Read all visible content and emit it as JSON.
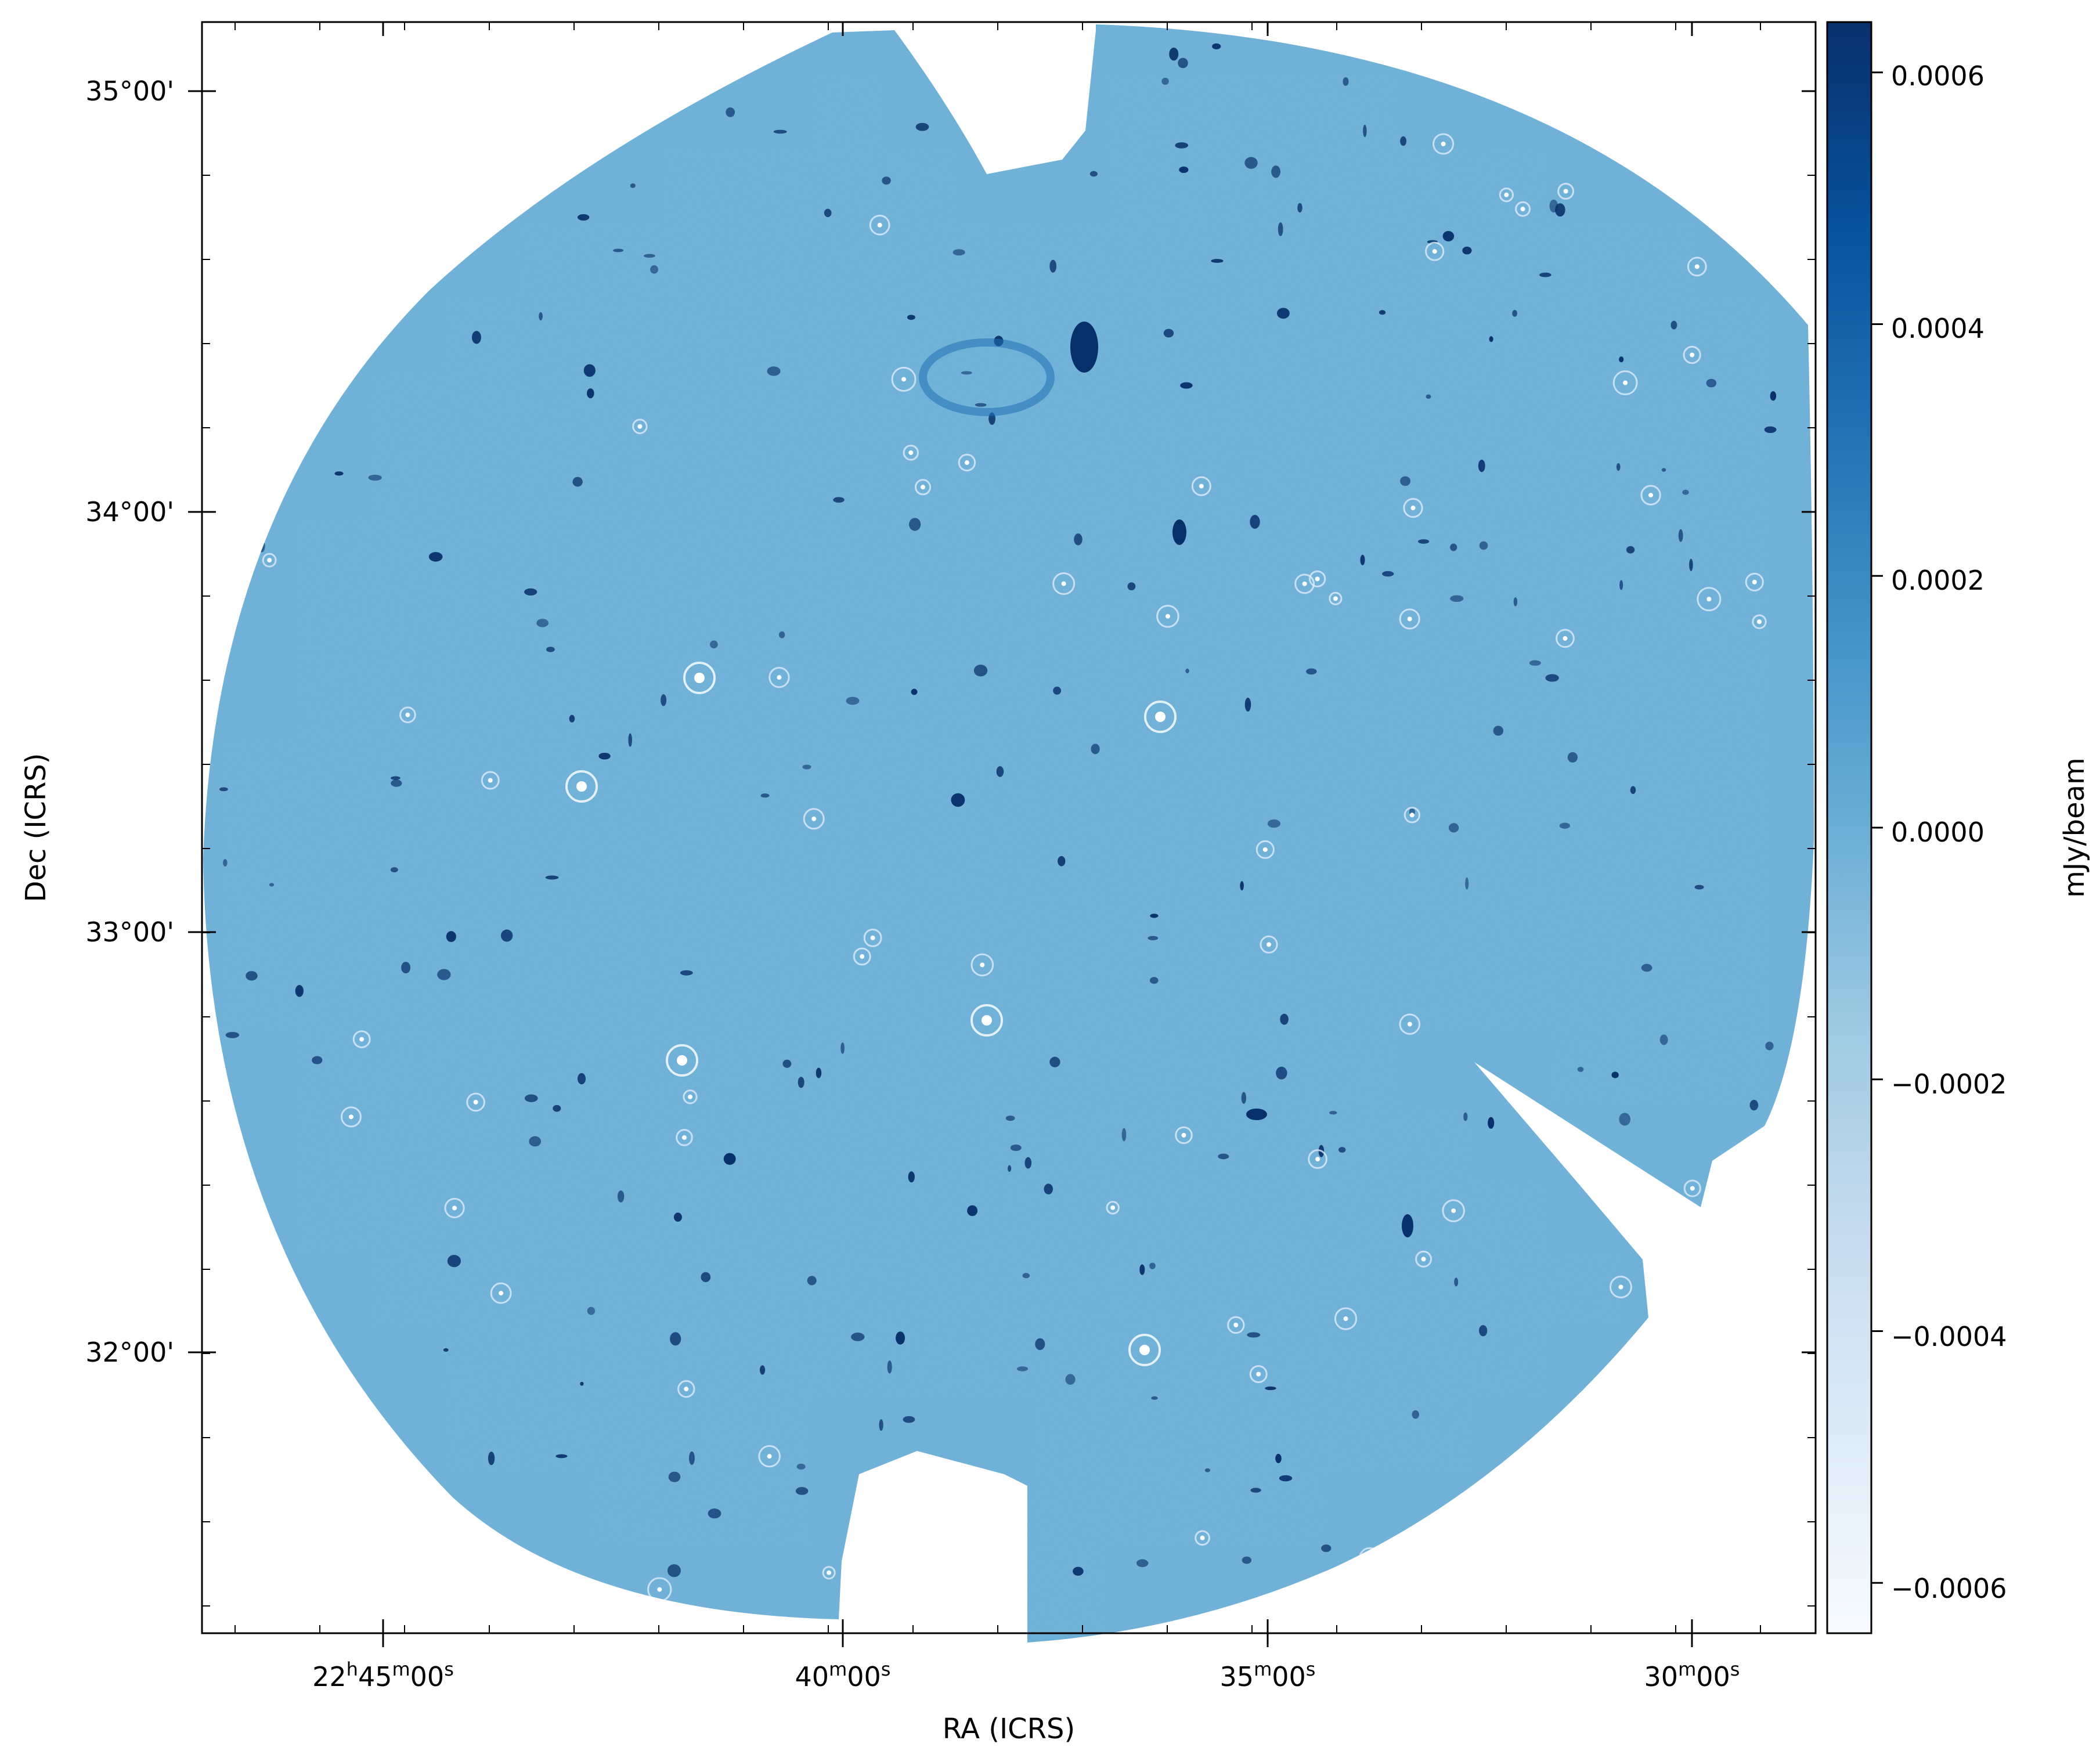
{
  "chart_data": {
    "type": "heatmap",
    "title": "",
    "description_type": "radio continuum sky image (mosaic) with colorbar",
    "xlabel": "RA (ICRS)",
    "ylabel": "Dec (ICRS)",
    "x_ticks": [
      {
        "h": "22",
        "m": "45",
        "s": "00",
        "label": "22h45m00s"
      },
      {
        "h": "",
        "m": "40",
        "s": "00",
        "label": "40m00s"
      },
      {
        "h": "",
        "m": "35",
        "s": "00",
        "label": "35m00s"
      },
      {
        "h": "",
        "m": "30",
        "s": "00",
        "label": "30m00s"
      }
    ],
    "y_ticks": [
      "35°00'",
      "34°00'",
      "33°00'",
      "32°00'"
    ],
    "colorbar": {
      "label": "mJy/beam",
      "colormap": "Blues",
      "range": [
        -0.00064,
        0.00064
      ],
      "ticks": [
        "0.0006",
        "0.0004",
        "0.0002",
        "0.0000",
        "−0.0002",
        "−0.0004",
        "−0.0006"
      ],
      "tick_values": [
        0.0006,
        0.0004,
        0.0002,
        0.0,
        -0.0002,
        -0.0004,
        -0.0006
      ]
    },
    "background_color": "#6baed6",
    "source_color": "#08306b",
    "grid": false
  }
}
